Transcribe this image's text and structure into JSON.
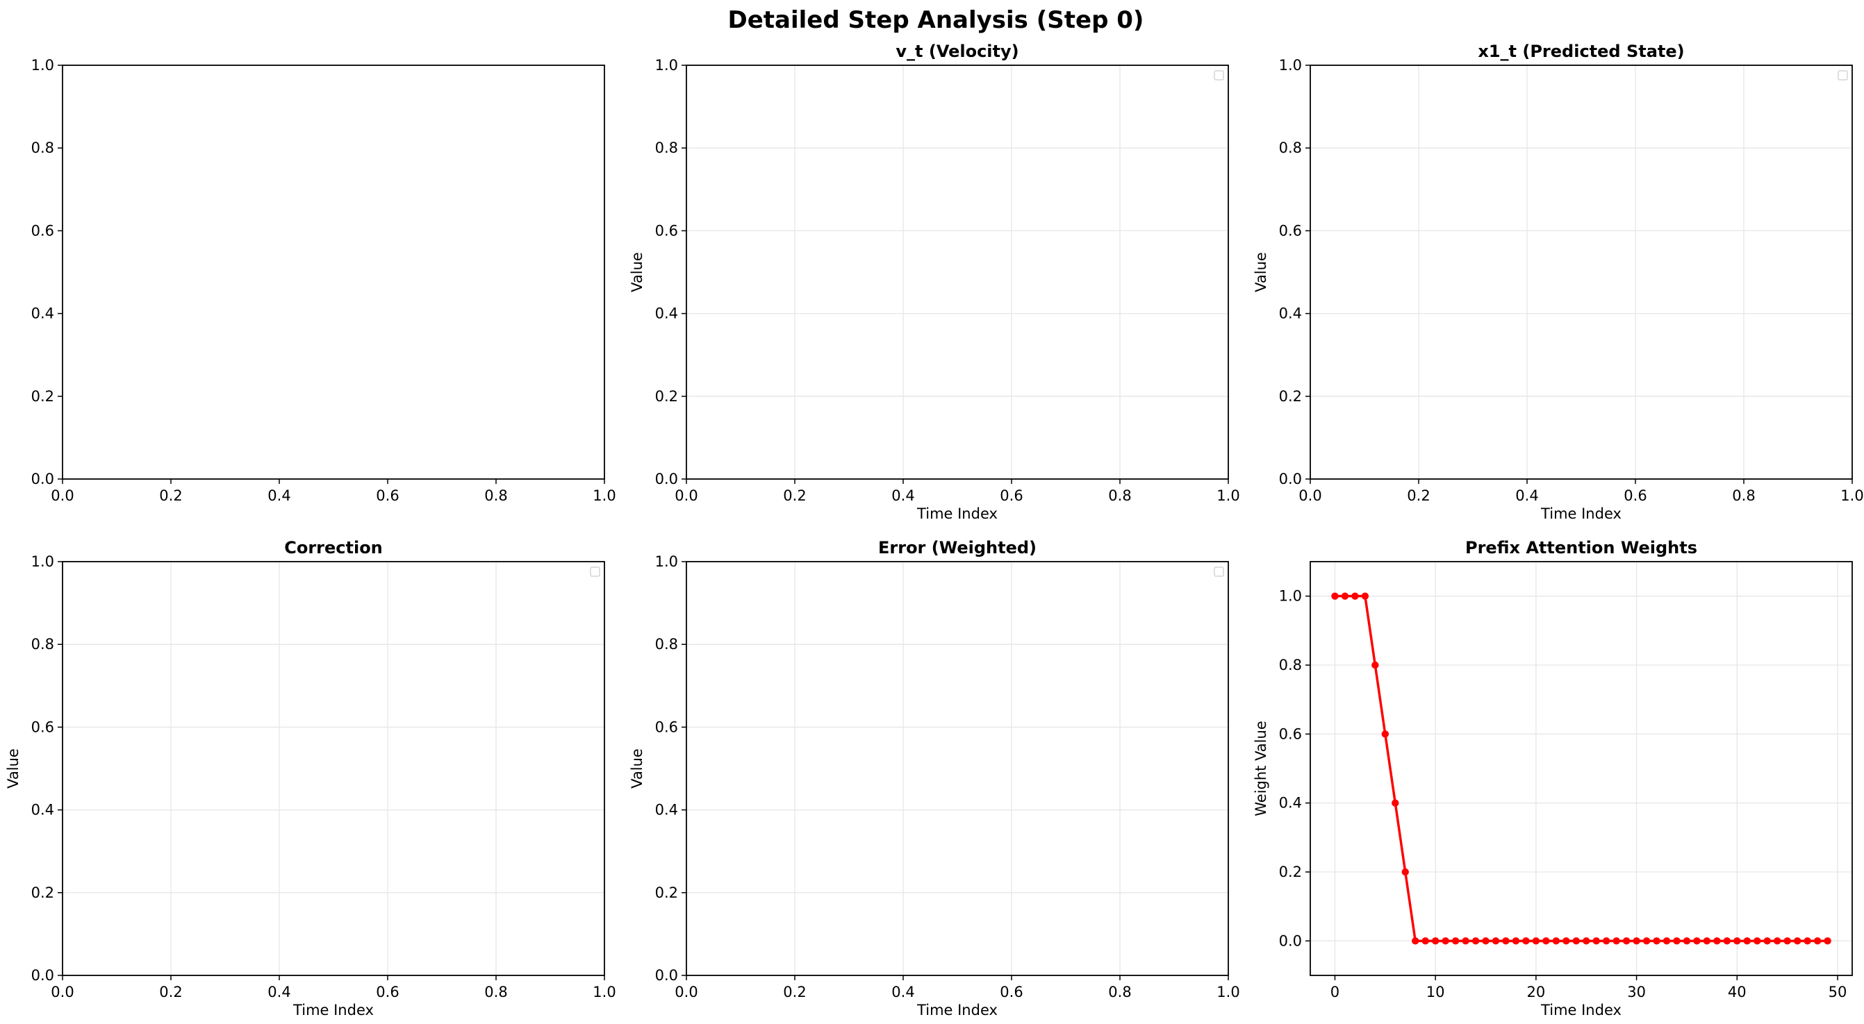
{
  "figure": {
    "title": "Detailed Step Analysis (Step 0)",
    "colors": {
      "line": "#ff0000",
      "grid": "#e6e6e6",
      "axes": "#000000"
    }
  },
  "chart_data": [
    {
      "type": "line",
      "title": "",
      "xlabel": "",
      "ylabel": "",
      "xlim": [
        0,
        1
      ],
      "ylim": [
        0,
        1
      ],
      "xticks": [
        "0.0",
        "0.2",
        "0.4",
        "0.6",
        "0.8",
        "1.0"
      ],
      "yticks": [
        "0.0",
        "0.2",
        "0.4",
        "0.6",
        "0.8",
        "1.0"
      ],
      "grid": false,
      "legend": false,
      "series": []
    },
    {
      "type": "line",
      "title": "v_t (Velocity)",
      "xlabel": "Time Index",
      "ylabel": "Value",
      "xlim": [
        0,
        1
      ],
      "ylim": [
        0,
        1
      ],
      "xticks": [
        "0.0",
        "0.2",
        "0.4",
        "0.6",
        "0.8",
        "1.0"
      ],
      "yticks": [
        "0.0",
        "0.2",
        "0.4",
        "0.6",
        "0.8",
        "1.0"
      ],
      "grid": true,
      "legend": "upper right (empty)",
      "series": []
    },
    {
      "type": "line",
      "title": "x1_t (Predicted State)",
      "xlabel": "Time Index",
      "ylabel": "Value",
      "xlim": [
        0,
        1
      ],
      "ylim": [
        0,
        1
      ],
      "xticks": [
        "0.0",
        "0.2",
        "0.4",
        "0.6",
        "0.8",
        "1.0"
      ],
      "yticks": [
        "0.0",
        "0.2",
        "0.4",
        "0.6",
        "0.8",
        "1.0"
      ],
      "grid": true,
      "legend": "upper right (empty)",
      "series": []
    },
    {
      "type": "line",
      "title": "Correction",
      "xlabel": "Time Index",
      "ylabel": "Value",
      "xlim": [
        0,
        1
      ],
      "ylim": [
        0,
        1
      ],
      "xticks": [
        "0.0",
        "0.2",
        "0.4",
        "0.6",
        "0.8",
        "1.0"
      ],
      "yticks": [
        "0.0",
        "0.2",
        "0.4",
        "0.6",
        "0.8",
        "1.0"
      ],
      "grid": true,
      "legend": "upper right (empty)",
      "series": []
    },
    {
      "type": "line",
      "title": "Error (Weighted)",
      "xlabel": "Time Index",
      "ylabel": "Value",
      "xlim": [
        0,
        1
      ],
      "ylim": [
        0,
        1
      ],
      "xticks": [
        "0.0",
        "0.2",
        "0.4",
        "0.6",
        "0.8",
        "1.0"
      ],
      "yticks": [
        "0.0",
        "0.2",
        "0.4",
        "0.6",
        "0.8",
        "1.0"
      ],
      "grid": true,
      "legend": "upper right (empty)",
      "series": []
    },
    {
      "type": "line",
      "title": "Prefix Attention Weights",
      "xlabel": "Time Index",
      "ylabel": "Weight Value",
      "xlim": [
        -2.45,
        51.45
      ],
      "ylim": [
        -0.1,
        1.1
      ],
      "xticks": [
        "0",
        "10",
        "20",
        "30",
        "40",
        "50"
      ],
      "yticks": [
        "0.0",
        "0.2",
        "0.4",
        "0.6",
        "0.8",
        "1.0"
      ],
      "grid": true,
      "legend": false,
      "series": [
        {
          "color": "#ff0000",
          "marker": "circle",
          "x": [
            0,
            1,
            2,
            3,
            4,
            5,
            6,
            7,
            8,
            9,
            10,
            11,
            12,
            13,
            14,
            15,
            16,
            17,
            18,
            19,
            20,
            21,
            22,
            23,
            24,
            25,
            26,
            27,
            28,
            29,
            30,
            31,
            32,
            33,
            34,
            35,
            36,
            37,
            38,
            39,
            40,
            41,
            42,
            43,
            44,
            45,
            46,
            47,
            48,
            49
          ],
          "y": [
            1.0,
            1.0,
            1.0,
            1.0,
            0.8,
            0.6,
            0.4,
            0.2,
            0,
            0,
            0,
            0,
            0,
            0,
            0,
            0,
            0,
            0,
            0,
            0,
            0,
            0,
            0,
            0,
            0,
            0,
            0,
            0,
            0,
            0,
            0,
            0,
            0,
            0,
            0,
            0,
            0,
            0,
            0,
            0,
            0,
            0,
            0,
            0,
            0,
            0,
            0,
            0,
            0,
            0
          ]
        }
      ]
    }
  ]
}
